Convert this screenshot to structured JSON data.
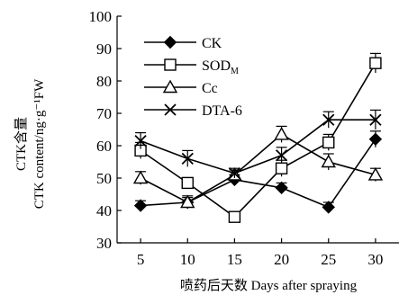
{
  "chart_data": {
    "type": "line",
    "title": "",
    "xlabel": "喷药后天数 Days after spraying",
    "ylabel_lines": [
      "CTK含量",
      "CTK content/ng·g⁻¹FW"
    ],
    "x": [
      5,
      10,
      15,
      20,
      25,
      30
    ],
    "xlim": [
      2.5,
      32.5
    ],
    "ylim": [
      30,
      100
    ],
    "yticks": [
      30,
      40,
      50,
      60,
      70,
      80,
      90,
      100
    ],
    "grid": false,
    "legend_position": "top-left",
    "series": [
      {
        "name": "CK",
        "marker": "diamond-filled",
        "values": [
          41.5,
          42.5,
          49.5,
          47,
          41,
          62
        ],
        "errors": [
          1.5,
          1.5,
          1.5,
          1.5,
          1.5,
          2.5
        ]
      },
      {
        "name": "SOD",
        "name_sub": "M",
        "marker": "square-open",
        "values": [
          58.5,
          48.5,
          38,
          53,
          61,
          85.5
        ],
        "errors": [
          2.5,
          1.5,
          1.5,
          2.5,
          2.5,
          3
        ]
      },
      {
        "name": "Cc",
        "marker": "triangle-open",
        "values": [
          50,
          42.5,
          51,
          63.5,
          55,
          51
        ],
        "errors": [
          2,
          2,
          1.5,
          2.5,
          2.5,
          2
        ]
      },
      {
        "name": "DTA-6",
        "marker": "x",
        "values": [
          61.5,
          56,
          51.5,
          57,
          68,
          68
        ],
        "errors": [
          2.5,
          2.5,
          1.5,
          2.5,
          2.5,
          3
        ]
      }
    ]
  }
}
